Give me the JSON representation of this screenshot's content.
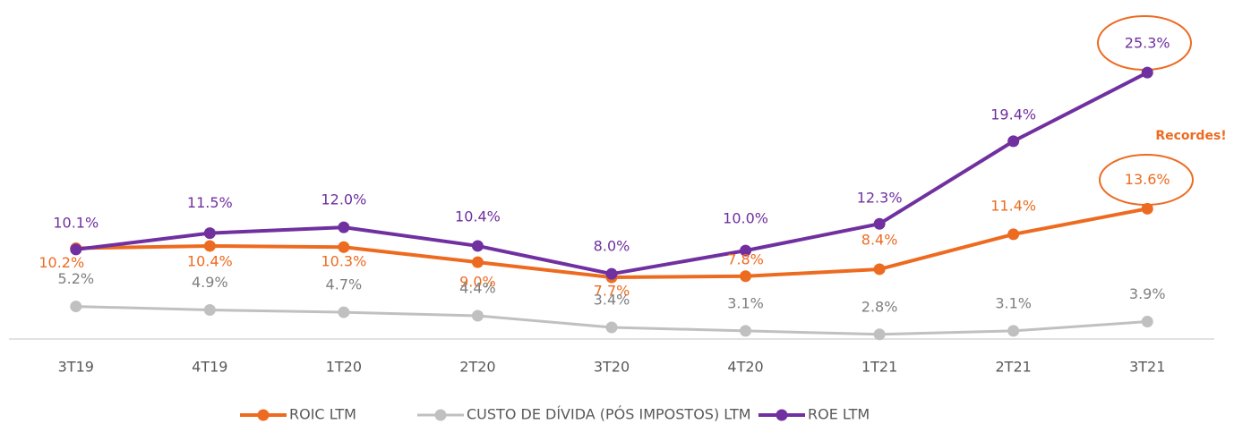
{
  "chart_data": {
    "type": "line",
    "categories": [
      "3T19",
      "4T19",
      "1T20",
      "2T20",
      "3T20",
      "4T20",
      "1T21",
      "2T21",
      "3T21"
    ],
    "series": [
      {
        "name": "ROIC LTM",
        "color": "#ed6b21",
        "label_color": "#ed6b21",
        "values": [
          10.2,
          10.4,
          10.3,
          9.0,
          7.7,
          7.8,
          8.4,
          11.4,
          13.6
        ],
        "value_labels": [
          "10.2%",
          "10.4%",
          "10.3%",
          "9.0%",
          "7.7%",
          "7.8%",
          "8.4%",
          "11.4%",
          "13.6%"
        ]
      },
      {
        "name": "CUSTO DE DÍVIDA (PÓS IMPOSTOS) LTM",
        "color": "#c0c0c0",
        "label_color": "#7f7f7f",
        "values": [
          5.2,
          4.9,
          4.7,
          4.4,
          3.4,
          3.1,
          2.8,
          3.1,
          3.9
        ],
        "value_labels": [
          "5.2%",
          "4.9%",
          "4.7%",
          "4.4%",
          "3.4%",
          "3.1%",
          "2.8%",
          "3.1%",
          "3.9%"
        ]
      },
      {
        "name": "ROE LTM",
        "color": "#7030a0",
        "label_color": "#7030a0",
        "values": [
          10.1,
          11.5,
          12.0,
          10.4,
          8.0,
          10.0,
          12.3,
          19.4,
          25.3
        ],
        "value_labels": [
          "10.1%",
          "11.5%",
          "12.0%",
          "10.4%",
          "8.0%",
          "10.0%",
          "12.3%",
          "19.4%",
          "25.3%"
        ]
      }
    ],
    "annotation": "Recordes!",
    "ylim": [
      2.4,
      30
    ],
    "legend": "bottom"
  }
}
